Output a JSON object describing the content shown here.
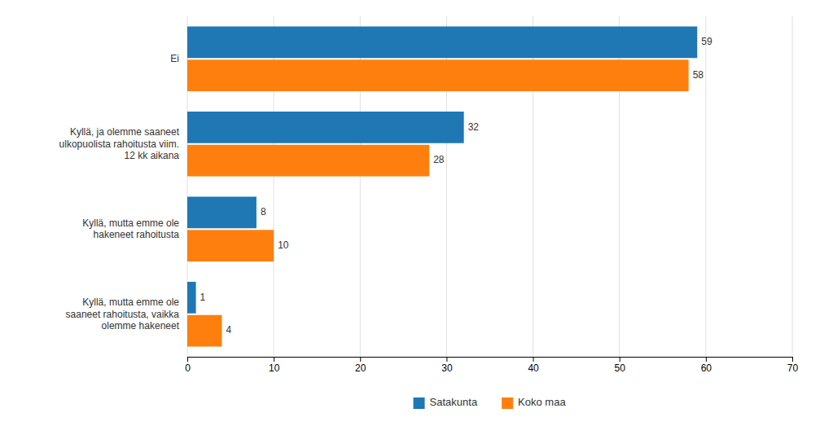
{
  "chart_data": {
    "type": "bar",
    "orientation": "horizontal",
    "categories": [
      "Ei",
      "Kyllä, ja olemme saaneet\nulkopuolista rahoitusta viim.\n12 kk aikana",
      "Kyllä, mutta emme ole\nhakeneet rahoitusta",
      "Kyllä, mutta emme ole\nsaaneet rahoitusta, vaikka\nolemme hakeneet"
    ],
    "series": [
      {
        "name": "Satakunta",
        "values": [
          59,
          32,
          8,
          1
        ]
      },
      {
        "name": "Koko maa",
        "values": [
          58,
          28,
          10,
          4
        ]
      }
    ],
    "xlim": [
      0,
      70
    ],
    "xticks": [
      0,
      10,
      20,
      30,
      40,
      50,
      60,
      70
    ],
    "grid": true,
    "data_labels": true,
    "legend": "bottom"
  }
}
